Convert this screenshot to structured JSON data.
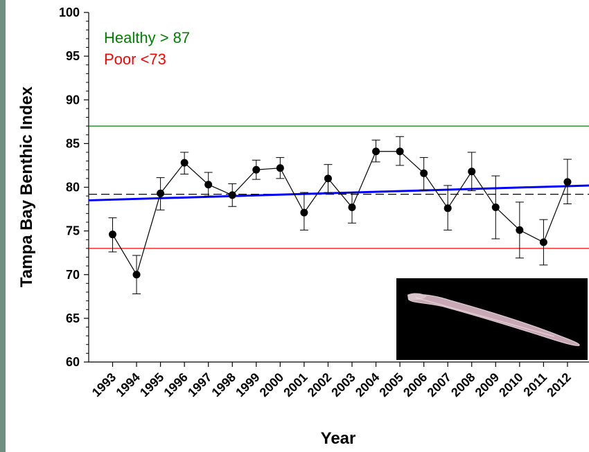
{
  "chart_data": {
    "type": "line",
    "xlabel": "Year",
    "ylabel": "Tampa Bay Benthic Index",
    "ylim": [
      60,
      100
    ],
    "yticks": [
      60,
      65,
      70,
      75,
      80,
      85,
      90,
      95,
      100
    ],
    "categories": [
      "1993",
      "1994",
      "1995",
      "1996",
      "1997",
      "1998",
      "1999",
      "2000",
      "2001",
      "2002",
      "2003",
      "2004",
      "2005",
      "2006",
      "2007",
      "2008",
      "2009",
      "2010",
      "2011",
      "2012"
    ],
    "series": [
      {
        "values": [
          74.6,
          70.0,
          79.3,
          82.8,
          80.3,
          79.1,
          82.0,
          82.2,
          77.1,
          81.0,
          77.7,
          84.1,
          84.1,
          81.6,
          77.6,
          81.8,
          77.7,
          75.1,
          73.7,
          80.6
        ],
        "err_low": [
          72.6,
          67.8,
          77.4,
          81.5,
          79.0,
          77.8,
          80.9,
          81.0,
          75.1,
          79.4,
          75.9,
          82.9,
          82.5,
          79.7,
          75.1,
          79.6,
          74.1,
          71.9,
          71.1,
          78.1
        ],
        "err_high": [
          76.5,
          72.2,
          81.1,
          84.0,
          81.7,
          80.4,
          83.1,
          83.4,
          79.4,
          82.6,
          79.4,
          85.4,
          85.8,
          83.4,
          80.2,
          84.0,
          81.3,
          78.3,
          76.3,
          83.2
        ],
        "color": "#000000"
      }
    ],
    "trend_line": {
      "start": 78.5,
      "end": 80.2,
      "color": "#0000ff"
    },
    "mean_line": {
      "value": 79.2,
      "style": "dashed",
      "color": "#000000"
    },
    "thresholds": [
      {
        "label": "Healthy > 87",
        "value": 87,
        "color": "#008000"
      },
      {
        "label": "Poor <73",
        "value": 73,
        "color": "#ff0000"
      }
    ],
    "grid": false,
    "inset_image": "benthic-worm-photo",
    "legend_position": "top-left"
  },
  "colors": {
    "frame_border": "#6f8f80",
    "photo_background": "#000000"
  }
}
